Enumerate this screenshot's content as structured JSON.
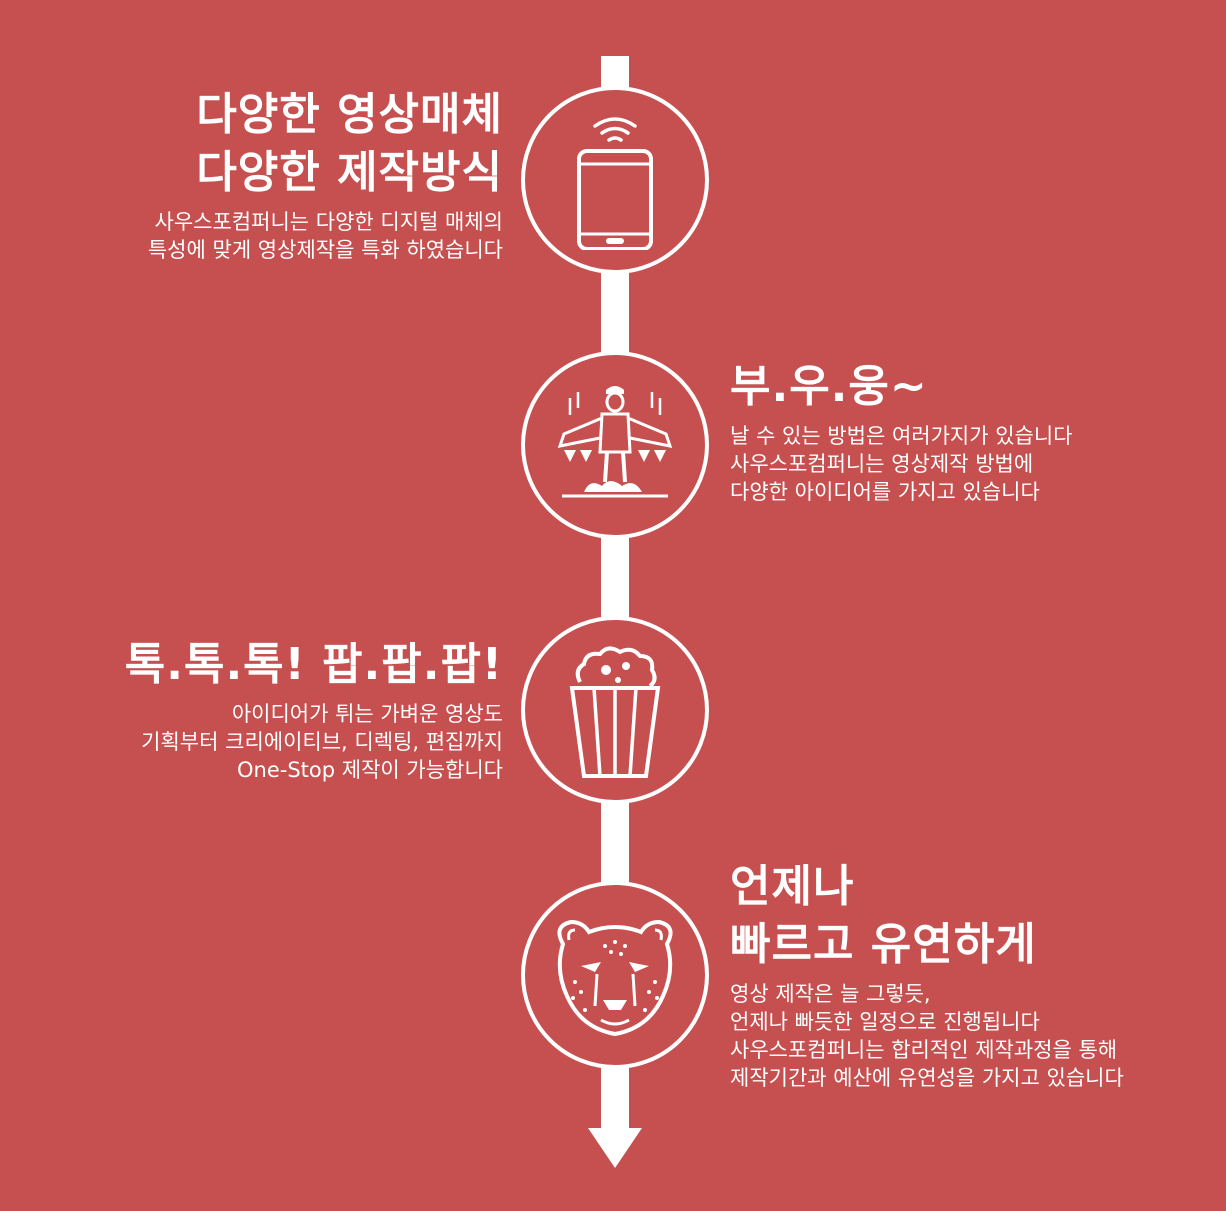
{
  "sections": [
    {
      "title_lines": [
        "다양한 영상매체",
        "다양한 제작방식"
      ],
      "desc_lines": [
        "사우스포컴퍼니는 다양한 디지털 매체의",
        "특성에 맞게 영상제작을 특화 하였습니다"
      ],
      "icon": "smartphone-icon"
    },
    {
      "title_lines": [
        "부.우.웅~"
      ],
      "desc_lines": [
        "날 수 있는 방법은 여러가지가 있습니다",
        "사우스포컴퍼니는 영상제작 방법에",
        "다양한 아이디어를 가지고 있습니다"
      ],
      "icon": "jetpack-man-icon"
    },
    {
      "title_lines": [
        "톡.톡.톡! 팝.팝.팝!"
      ],
      "desc_lines": [
        "아이디어가 튀는 가벼운 영상도",
        "기획부터 크리에이티브, 디렉팅, 편집까지",
        "One-Stop 제작이 가능합니다"
      ],
      "icon": "popcorn-icon"
    },
    {
      "title_lines": [
        "언제나",
        "빠르고 유연하게"
      ],
      "desc_lines": [
        "영상 제작은 늘 그렇듯,",
        "언제나 빠듯한 일정으로 진행됩니다",
        "사우스포컴퍼니는 합리적인 제작과정을 통해",
        "제작기간과 예산에 유연성을 가지고 있습니다"
      ],
      "icon": "cheetah-icon"
    }
  ],
  "colors": {
    "background": "#c65050",
    "foreground": "#ffffff"
  }
}
